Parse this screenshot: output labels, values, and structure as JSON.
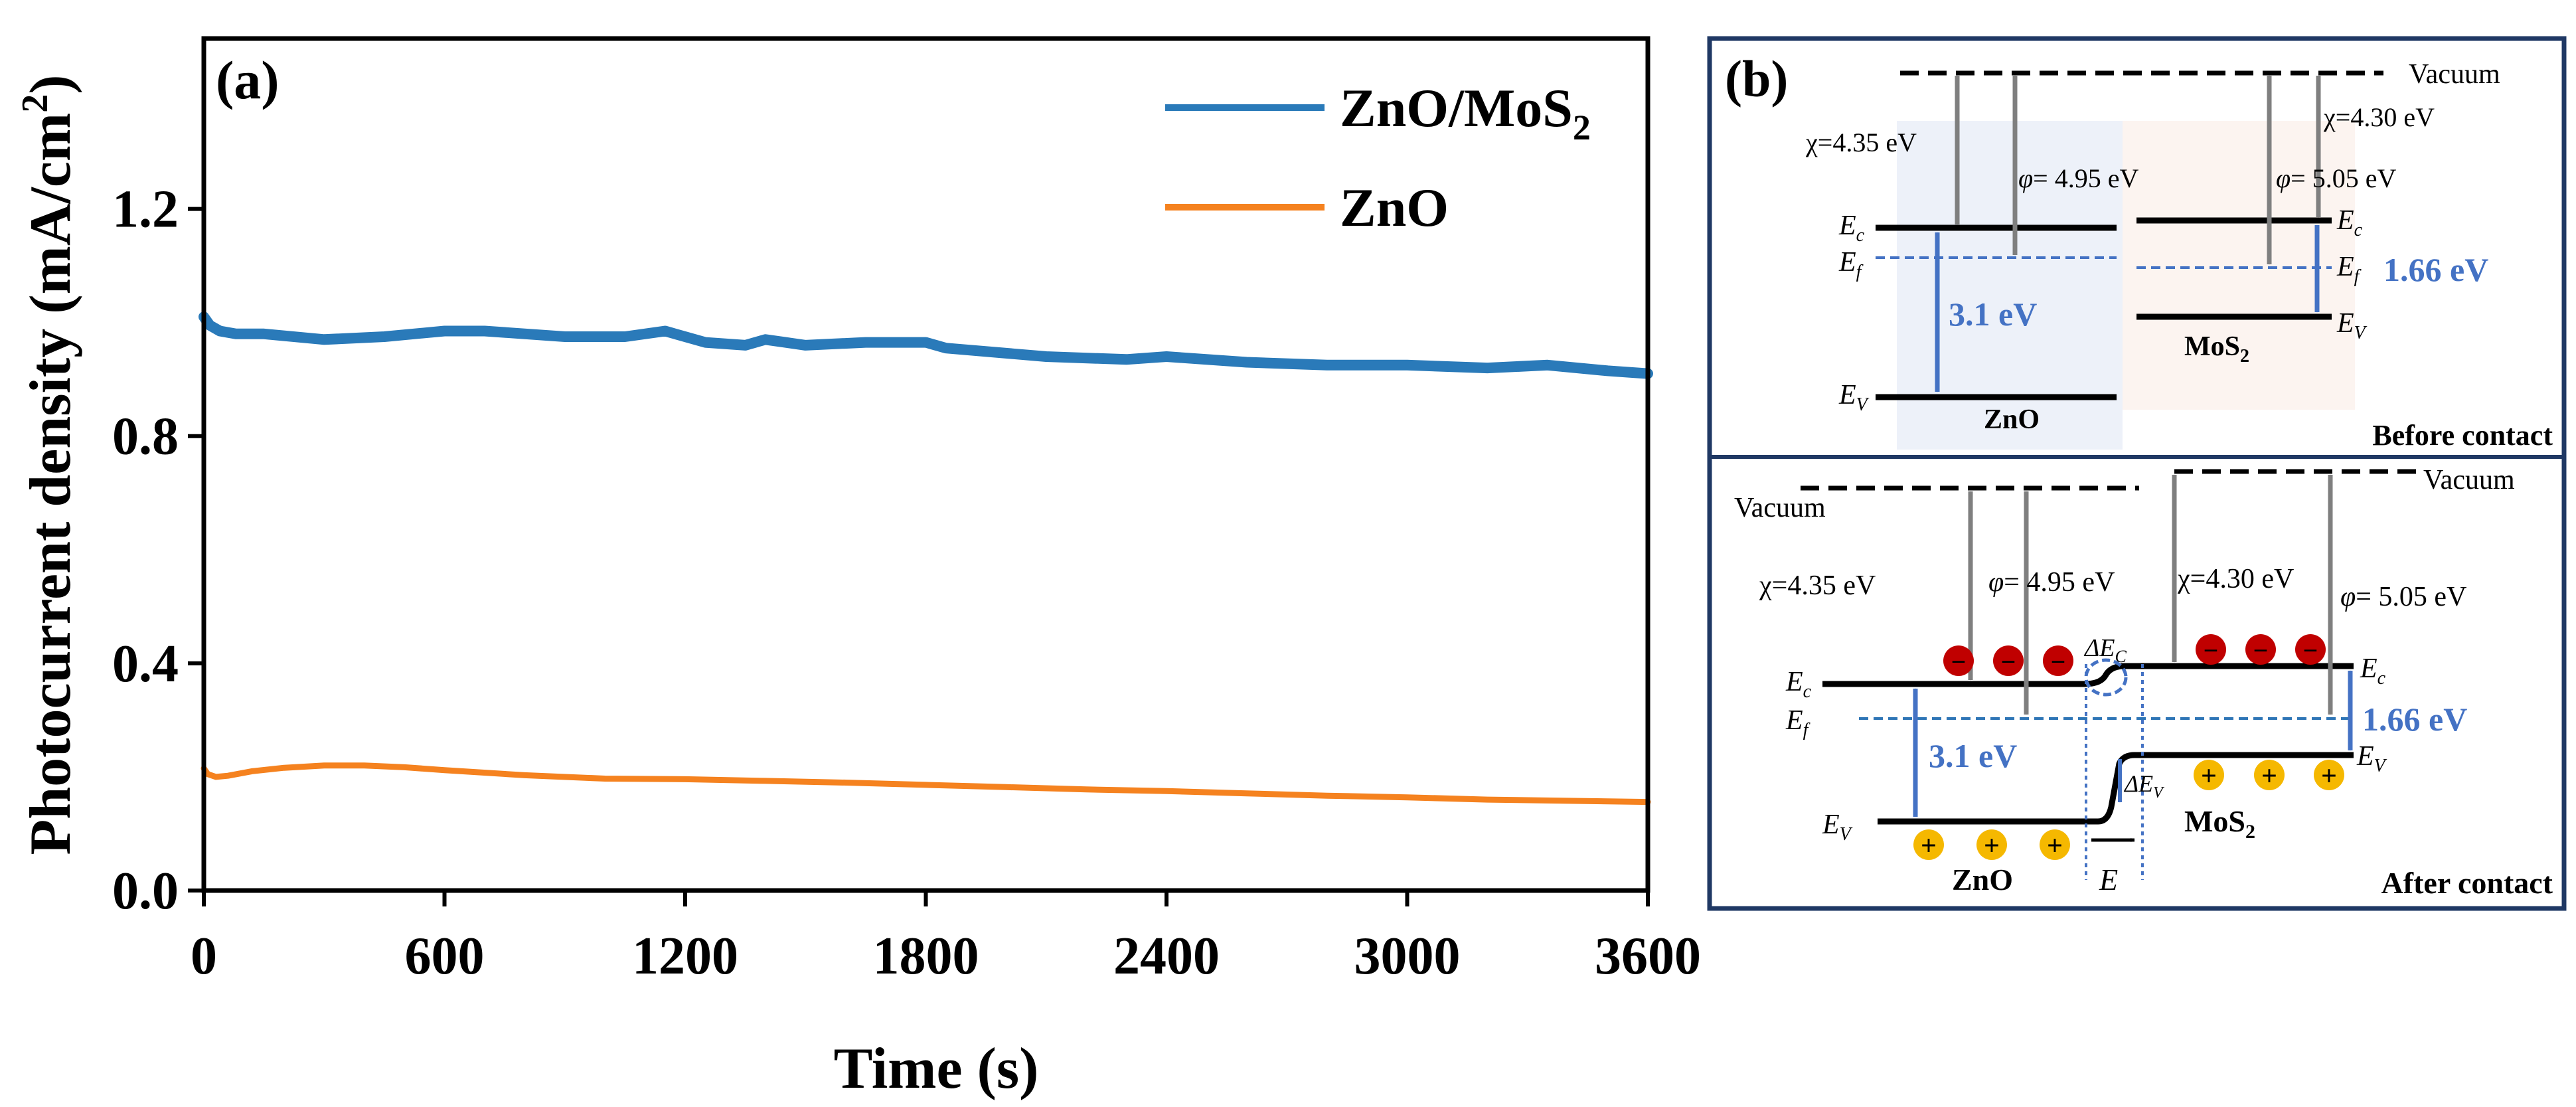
{
  "colors": {
    "zno_mos2": "#2A7AB9",
    "zno": "#F5821F",
    "text": "#000000",
    "arrow_gray": "#7F7F7F",
    "accent_blue": "#4472C4",
    "zno_bg": "#EDF1F9",
    "mos2_bg": "#FCF4F0",
    "panel_border": "#1F3864",
    "electron": "#C00000",
    "hole": "#F5B800"
  },
  "chart_data": [
    {
      "type": "line",
      "panel_label": "(a)",
      "xlabel": "Time (s)",
      "ylabel": "Photocurrent density (mA/cm²)",
      "xlim": [
        0,
        3600
      ],
      "ylim": [
        0.0,
        1.5
      ],
      "xticks": [
        0,
        600,
        1200,
        1800,
        2400,
        3000,
        3600
      ],
      "yticks": [
        0.0,
        0.4,
        0.8,
        1.2
      ],
      "xtick_labels": [
        "0",
        "600",
        "1200",
        "1800",
        "2400",
        "3000",
        "3600"
      ],
      "ytick_labels": [
        "0.0",
        "0.4",
        "0.8",
        "1.2"
      ],
      "legend_position": "top-right",
      "grid": false,
      "series": [
        {
          "name": "ZnO/MoS2",
          "legend_main": "ZnO/MoS",
          "legend_sub": "2",
          "x": [
            0,
            15,
            40,
            80,
            150,
            300,
            450,
            600,
            700,
            900,
            1050,
            1150,
            1250,
            1350,
            1400,
            1450,
            1500,
            1650,
            1800,
            1850,
            2100,
            2300,
            2400,
            2600,
            2800,
            3000,
            3200,
            3350,
            3500,
            3600
          ],
          "y": [
            1.01,
            0.995,
            0.985,
            0.98,
            0.98,
            0.97,
            0.975,
            0.985,
            0.985,
            0.975,
            0.975,
            0.985,
            0.965,
            0.96,
            0.97,
            0.965,
            0.96,
            0.965,
            0.965,
            0.955,
            0.94,
            0.935,
            0.94,
            0.93,
            0.925,
            0.925,
            0.92,
            0.925,
            0.915,
            0.91
          ]
        },
        {
          "name": "ZnO",
          "legend_main": "ZnO",
          "legend_sub": "",
          "x": [
            0,
            10,
            30,
            60,
            120,
            200,
            300,
            400,
            500,
            600,
            800,
            1000,
            1200,
            1400,
            1600,
            1800,
            2000,
            2200,
            2400,
            2600,
            2800,
            3000,
            3200,
            3400,
            3600
          ],
          "y": [
            0.215,
            0.205,
            0.2,
            0.202,
            0.21,
            0.216,
            0.22,
            0.22,
            0.217,
            0.212,
            0.203,
            0.197,
            0.196,
            0.193,
            0.19,
            0.186,
            0.182,
            0.178,
            0.175,
            0.171,
            0.167,
            0.164,
            0.16,
            0.158,
            0.156
          ]
        }
      ]
    }
  ],
  "diagram_b": {
    "panel_label": "(b)",
    "before": {
      "vacuum": "Vacuum",
      "chi_zno": "χ=4.35 eV",
      "chi_mos2": "χ=4.30 eV",
      "phi_zno": "= 4.95 eV",
      "phi_mos2": "= 5.05 eV",
      "phi_symbol": "φ",
      "gap_zno": "3.1 eV",
      "gap_mos2": "1.66 eV",
      "ec": {
        "main": "E",
        "sub": "c"
      },
      "ef": {
        "main": "E",
        "sub": "f"
      },
      "ev": {
        "main": "E",
        "sub": "V"
      },
      "zno": "ZnO",
      "mos2": {
        "main": "MoS",
        "sub": "2"
      },
      "caption": "Before contact"
    },
    "after": {
      "vacuum_left": "Vacuum",
      "vacuum_right": "Vacuum",
      "chi_zno": "χ=4.35 eV",
      "chi_mos2": "χ=4.30 eV",
      "phi_zno": "= 4.95 eV",
      "phi_mos2": "= 5.05 eV",
      "phi_symbol": "φ",
      "gap_zno": "3.1 eV",
      "gap_mos2": "1.66 eV",
      "ec": {
        "main": "E",
        "sub": "c"
      },
      "ef": {
        "main": "E",
        "sub": "f"
      },
      "ev": {
        "main": "E",
        "sub": "V"
      },
      "delta_ec": {
        "main": "ΔE",
        "sub": "C"
      },
      "delta_ev": {
        "main": "ΔE",
        "sub": "V"
      },
      "field": "E",
      "electron_sign": "−",
      "hole_sign": "+",
      "zno": "ZnO",
      "mos2": {
        "main": "MoS",
        "sub": "2"
      },
      "caption": "After contact"
    }
  }
}
